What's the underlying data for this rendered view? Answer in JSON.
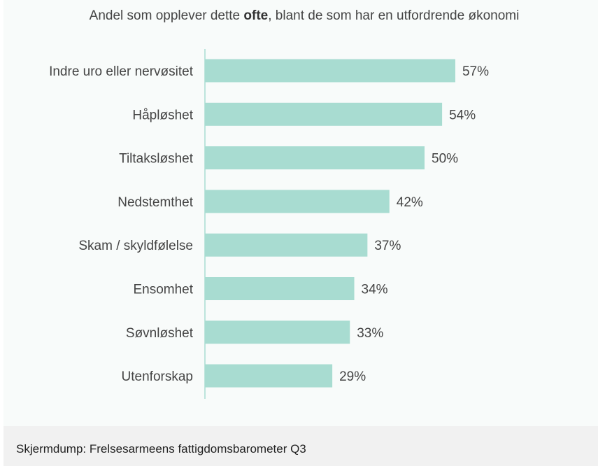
{
  "chart_data": {
    "type": "bar",
    "orientation": "horizontal",
    "title": {
      "before": "Andel som opplever dette ",
      "bold": "ofte",
      "after": ", blant de som har en utfordrende økonomi"
    },
    "categories": [
      "Indre uro eller nervøsitet",
      "Håpløshet",
      "Tiltaksløshet",
      "Nedstemthet",
      "Skam / skyldfølelse",
      "Ensomhet",
      "Søvnløshet",
      "Utenforskap"
    ],
    "values": [
      57,
      54,
      50,
      42,
      37,
      34,
      33,
      29
    ],
    "value_suffix": "%",
    "xlim": [
      0,
      100
    ],
    "grid": false,
    "legend": "none",
    "colors": {
      "bar": "#a8dcd1",
      "axis": "#a8dcd1",
      "label": "#444444"
    }
  },
  "caption": "Skjermdump: Frelsesarmeens fattigdomsbarometer Q3"
}
